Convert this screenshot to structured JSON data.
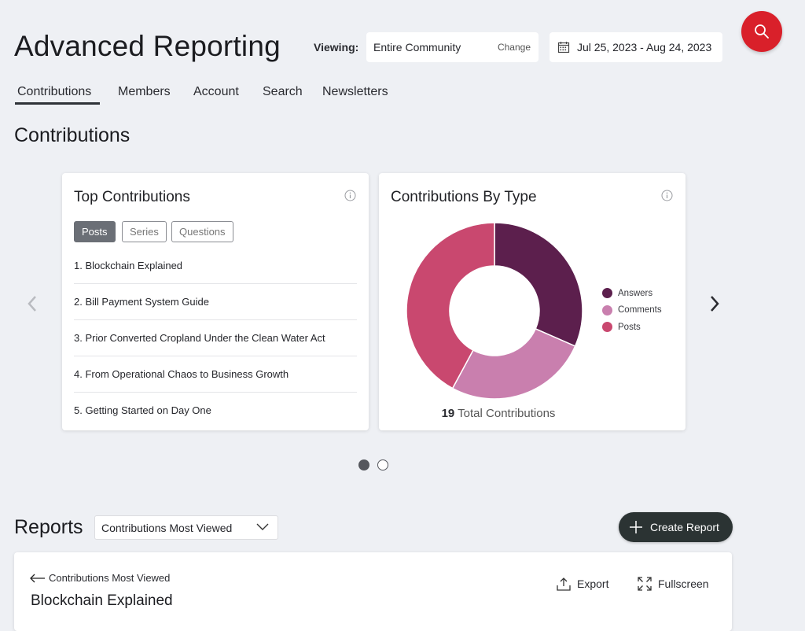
{
  "header": {
    "title": "Advanced Reporting",
    "viewing_label": "Viewing:",
    "scope_value": "Entire Community",
    "scope_change": "Change",
    "date_range": "Jul 25, 2023 - Aug 24, 2023",
    "icons": {
      "search": "search-icon",
      "calendar": "calendar-icon"
    },
    "accent": "#d9202a"
  },
  "tabs": [
    {
      "label": "Contributions",
      "active": true
    },
    {
      "label": "Members"
    },
    {
      "label": "Account"
    },
    {
      "label": "Search"
    },
    {
      "label": "Newsletters"
    }
  ],
  "section_title": "Contributions",
  "top_contributions": {
    "title": "Top Contributions",
    "filters": [
      "Posts",
      "Series",
      "Questions"
    ],
    "active_filter": "Posts",
    "items": [
      "1. Blockchain Explained",
      "2. Bill Payment System Guide",
      "3. Prior Converted Cropland Under the Clean Water Act",
      "4. From Operational Chaos to Business Growth",
      "5. Getting Started on Day One"
    ]
  },
  "contributions_by_type": {
    "title": "Contributions By Type",
    "total_value": "19",
    "total_label": "Total Contributions",
    "chart_data": {
      "type": "pie",
      "donut": true,
      "categories": [
        "Answers",
        "Comments",
        "Posts"
      ],
      "values": [
        6,
        5,
        8
      ],
      "colors": [
        "#5c1f4d",
        "#c97fae",
        "#c9486f"
      ],
      "legend": "right"
    }
  },
  "carousel": {
    "pages": 2,
    "active_page": 1
  },
  "reports": {
    "title": "Reports",
    "selected": "Contributions Most Viewed",
    "create_label": "Create Report",
    "back_label": "Contributions Most Viewed",
    "report_title": "Blockchain Explained",
    "export_label": "Export",
    "fullscreen_label": "Fullscreen"
  }
}
